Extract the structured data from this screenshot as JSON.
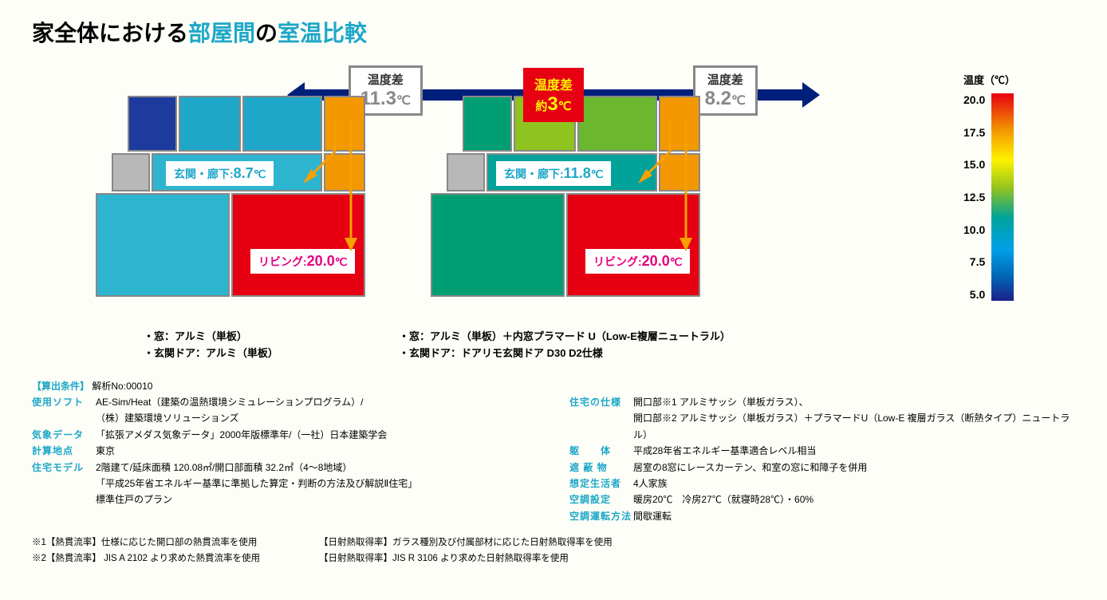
{
  "title_prefix": "家全体における",
  "title_accent1": "部屋間",
  "title_mid": "の",
  "title_accent2": "室温比較",
  "center": {
    "line1": "温度差",
    "line2_pre": "約",
    "line2_val": "3",
    "line2_unit": "℃"
  },
  "left_plan": {
    "badge_label": "温度差",
    "badge_value": "11.3",
    "badge_unit": "℃",
    "hall_label": "玄関・廊下:",
    "hall_value": "8.7",
    "hall_unit": "℃",
    "living_label": "リビング:",
    "living_value": "20.0",
    "living_unit": "℃",
    "spec1": "・窓：アルミ（単板）",
    "spec2": "・玄関ドア：アルミ（単板）",
    "rooms": {
      "r1": "#1d3a9e",
      "r2": "#1ea7c8",
      "r3": "#1ea7c8",
      "r4": "#f39800",
      "r5": "#b8b8b8",
      "r6": "#2db5d0",
      "r7": "#f39800",
      "r8": "#2db5d0",
      "r9": "#e60012"
    }
  },
  "right_plan": {
    "badge_label": "温度差",
    "badge_value": "8.2",
    "badge_unit": "℃",
    "hall_label": "玄関・廊下:",
    "hall_value": "11.8",
    "hall_unit": "℃",
    "living_label": "リビング:",
    "living_value": "20.0",
    "living_unit": "℃",
    "spec1": "・窓：アルミ（単板）＋内窓プラマード U（Low-E複層ニュートラル）",
    "spec2": "・玄関ドア：ドアリモ玄関ドア D30 D2仕様",
    "rooms": {
      "r1": "#009e73",
      "r2": "#8fc31f",
      "r3": "#6bb82f",
      "r4": "#f39800",
      "r5": "#b8b8b8",
      "r6": "#00a29a",
      "r7": "#f39800",
      "r8": "#009e73",
      "r9": "#e60012"
    }
  },
  "legend": {
    "title": "温度（℃）",
    "ticks": [
      "20.0",
      "17.5",
      "15.0",
      "12.5",
      "10.0",
      "7.5",
      "5.0"
    ]
  },
  "conditions": {
    "header": "算出条件",
    "analysis_no": "解析No:00010",
    "left": [
      {
        "label": "使用ソフト",
        "value": "AE-Sim/Heat（建築の温熱環境シミュレーションプログラム）/"
      },
      {
        "label": "",
        "value": "（株）建築環境ソリューションズ"
      },
      {
        "label": "気象データ",
        "value": "「拡張アメダス気象データ」2000年版標準年/（一社）日本建築学会"
      },
      {
        "label": "計算地点",
        "value": "東京"
      },
      {
        "label": "住宅モデル",
        "value": "2階建て/延床面積 120.08㎡/開口部面積 32.2㎡（4～8地域）"
      },
      {
        "label": "",
        "value": "「平成25年省エネルギー基準に準拠した算定・判断の方法及び解説Ⅱ住宅」"
      },
      {
        "label": "",
        "value": "標準住戸のプラン"
      }
    ],
    "right": [
      {
        "label": "住宅の仕様",
        "value": "開口部※1 アルミサッシ（単板ガラス）、"
      },
      {
        "label": "",
        "value": "開口部※2 アルミサッシ（単板ガラス）＋プラマードU（Low-E 複層ガラス（断熱タイプ）ニュートラル）"
      },
      {
        "label": "躯　　体",
        "value": "平成28年省エネルギー基準適合レベル相当"
      },
      {
        "label": "遮 蔽 物",
        "value": "居室の8窓にレースカーテン、和室の窓に和障子を併用"
      },
      {
        "label": "想定生活者",
        "value": "4人家族"
      },
      {
        "label": "空調設定",
        "value": "暖房20℃　冷房27℃（就寝時28℃）・60%"
      },
      {
        "label": "空調運転方法",
        "value": "間歇運転"
      }
    ]
  },
  "notes": [
    {
      "a": "※1【熱貫流率】仕様に応じた開口部の熱貫流率を使用",
      "b": "【日射熱取得率】ガラス種別及び付属部材に応じた日射熱取得率を使用"
    },
    {
      "a": "※2【熱貫流率】 JIS A 2102 より求めた熱貫流率を使用",
      "b": "【日射熱取得率】JIS R 3106 より求めた日射熱取得率を使用"
    }
  ],
  "colors": {
    "accent": "#1ea7c8",
    "red": "#e60012",
    "yellow": "#fff200",
    "navy": "#001f7a",
    "orange_arrow": "#f5a100",
    "magenta": "#e6007e"
  }
}
